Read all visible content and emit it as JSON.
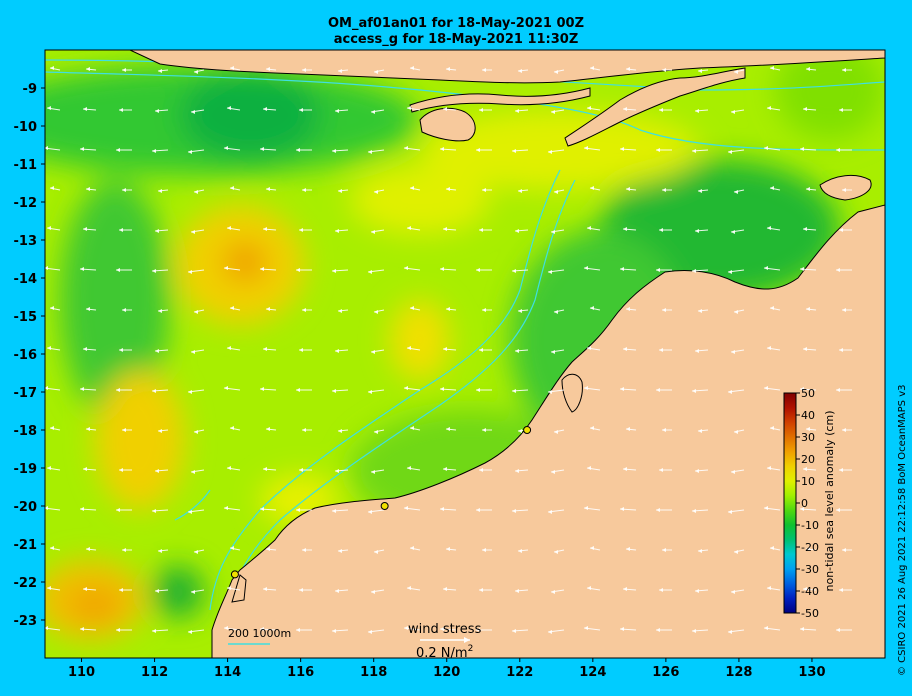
{
  "title_line1": "OM_af01an01 for 18-May-2021 00Z",
  "title_line2": "access_g for 18-May-2021 11:30Z",
  "credit": "© CSIRO 2021  26 Aug 2021 22:12:58 BoM OceanMAPS v3",
  "colors": {
    "background": "#00ccff",
    "land": "#f7c99c",
    "coastline": "#000000",
    "isobath": "#3fe0e0",
    "arrow": "#ffffff"
  },
  "map": {
    "lon_ticks": [
      110,
      112,
      114,
      116,
      118,
      120,
      122,
      124,
      126,
      128,
      130
    ],
    "lat_ticks": [
      -9,
      -10,
      -11,
      -12,
      -13,
      -14,
      -15,
      -16,
      -17,
      -18,
      -19,
      -20,
      -21,
      -22,
      -23
    ],
    "lon_range": [
      109,
      132
    ],
    "lat_range": [
      -24,
      -8
    ]
  },
  "colorbar": {
    "title": "non-tidal sea level anomaly (cm)",
    "ticks": [
      "50",
      "40",
      "30",
      "20",
      "10",
      "0",
      "-10",
      "-20",
      "-30",
      "-40",
      "-50"
    ],
    "range": [
      -50,
      50
    ],
    "colors": [
      "#000080",
      "#0020c0",
      "#0060e0",
      "#00a0f0",
      "#00c8d0",
      "#00c070",
      "#10c030",
      "#50d810",
      "#a0f000",
      "#e0f000",
      "#f0d000",
      "#f0a000",
      "#e07000",
      "#d04000",
      "#b01000",
      "#800000"
    ]
  },
  "legend": {
    "isobath_label": "200  1000m",
    "wind_title": "wind stress",
    "wind_scale_value": "0.2 N/m",
    "wind_scale_sup": "2"
  },
  "stations": [
    {
      "lon": 114.2,
      "lat": -21.8
    },
    {
      "lon": 118.3,
      "lat": -20.0
    },
    {
      "lon": 122.2,
      "lat": -18.0
    }
  ]
}
